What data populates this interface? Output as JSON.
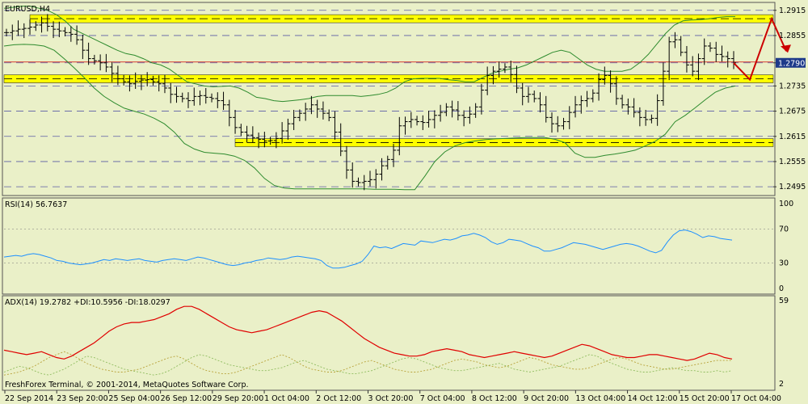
{
  "colors": {
    "background": "#eaf0c8",
    "candle": "#000000",
    "bollinger": "#2e8b2e",
    "rsi_line": "#1e90ff",
    "adx_line": "#e00000",
    "di_plus": "#8fbc5f",
    "di_minus": "#b8a23a",
    "support_band": "#ffff00",
    "projection": "#cc0000",
    "price_marker_bg": "#1e3a8a"
  },
  "chart_data": [
    {
      "type": "candlestick",
      "title": "EURUSD,H4",
      "price_axis": [
        "1.2915",
        "1.2855",
        "1.2790",
        "1.2735",
        "1.2675",
        "1.2615",
        "1.2555",
        "1.2495"
      ],
      "ylim": [
        1.2478,
        1.2928
      ],
      "current_price": "1.2790",
      "x_ticks": [
        "22 Sep 2014",
        "23 Sep 20:00",
        "25 Sep 04:00",
        "26 Sep 12:00",
        "29 Sep 20:00",
        "1 Oct 04:00",
        "2 Oct 12:00",
        "3 Oct 20:00",
        "7 Oct 04:00",
        "8 Oct 12:00",
        "9 Oct 20:00",
        "13 Oct 04:00",
        "14 Oct 12:00",
        "15 Oct 20:00",
        "17 Oct 04:00"
      ],
      "close_series": [
        1.2862,
        1.2866,
        1.287,
        1.2872,
        1.2875,
        1.288,
        1.2885,
        1.2877,
        1.287,
        1.2866,
        1.2862,
        1.2858,
        1.2845,
        1.282,
        1.28,
        1.2795,
        1.279,
        1.278,
        1.2765,
        1.2752,
        1.2745,
        1.274,
        1.2746,
        1.2749,
        1.275,
        1.2745,
        1.274,
        1.273,
        1.2715,
        1.271,
        1.2705,
        1.27,
        1.271,
        1.2712,
        1.2708,
        1.2705,
        1.27,
        1.269,
        1.266,
        1.2636,
        1.2625,
        1.2618,
        1.2612,
        1.2608,
        1.2604,
        1.2605,
        1.261,
        1.2628,
        1.2645,
        1.266,
        1.267,
        1.268,
        1.269,
        1.268,
        1.267,
        1.266,
        1.2625,
        1.258,
        1.2535,
        1.2508,
        1.2505,
        1.2508,
        1.2512,
        1.2525,
        1.2545,
        1.256,
        1.2582,
        1.264,
        1.265,
        1.2655,
        1.265,
        1.2648,
        1.2655,
        1.2665,
        1.2672,
        1.2685,
        1.2678,
        1.2665,
        1.266,
        1.2668,
        1.2685,
        1.2725,
        1.276,
        1.277,
        1.2775,
        1.278,
        1.2762,
        1.273,
        1.271,
        1.2715,
        1.2705,
        1.269,
        1.266,
        1.2645,
        1.264,
        1.265,
        1.2672,
        1.269,
        1.27,
        1.2705,
        1.2718,
        1.275,
        1.276,
        1.274,
        1.2705,
        1.269,
        1.2685,
        1.2672,
        1.266,
        1.2655,
        1.2658,
        1.27,
        1.277,
        1.284,
        1.2845,
        1.2815,
        1.2785,
        1.277,
        1.28,
        1.283,
        1.2825,
        1.281,
        1.2805,
        1.28,
        1.279
      ],
      "upper_bollinger": [
        1.292,
        1.2922,
        1.2925,
        1.2925,
        1.292,
        1.2915,
        1.2905,
        1.289,
        1.287,
        1.286,
        1.285,
        1.284,
        1.283,
        1.282,
        1.2812,
        1.2808,
        1.28,
        1.279,
        1.2785,
        1.2775,
        1.276,
        1.2745,
        1.274,
        1.2735,
        1.2733,
        1.2734,
        1.2735,
        1.273,
        1.272,
        1.2708,
        1.2705,
        1.27,
        1.2698,
        1.27,
        1.2702,
        1.2705,
        1.271,
        1.2712,
        1.2712,
        1.2712,
        1.2712,
        1.271,
        1.2712,
        1.2715,
        1.272,
        1.273,
        1.2745,
        1.2752,
        1.2753,
        1.2753,
        1.2753,
        1.275,
        1.2748,
        1.2745,
        1.2745,
        1.2755,
        1.2765,
        1.277,
        1.2775,
        1.2778,
        1.2785,
        1.2795,
        1.2805,
        1.2815,
        1.282,
        1.2815,
        1.28,
        1.2785,
        1.2775,
        1.277,
        1.277,
        1.277,
        1.2775,
        1.279,
        1.281,
        1.2835,
        1.286,
        1.288,
        1.289,
        1.2892,
        1.2893,
        1.2895,
        1.2898,
        1.29,
        1.29
      ],
      "lower_bollinger": [
        1.283,
        1.2833,
        1.2834,
        1.2833,
        1.283,
        1.282,
        1.28,
        1.2778,
        1.2755,
        1.273,
        1.271,
        1.2695,
        1.2682,
        1.2675,
        1.2668,
        1.2658,
        1.2645,
        1.2625,
        1.2598,
        1.2585,
        1.2577,
        1.2575,
        1.2573,
        1.2568,
        1.2558,
        1.254,
        1.2515,
        1.2498,
        1.2492,
        1.249,
        1.249,
        1.249,
        1.249,
        1.249,
        1.249,
        1.249,
        1.249,
        1.2489,
        1.2489,
        1.2489,
        1.2488,
        1.2488,
        1.252,
        1.2555,
        1.2578,
        1.2592,
        1.26,
        1.2604,
        1.2607,
        1.2609,
        1.261,
        1.2611,
        1.2612,
        1.2612,
        1.2612,
        1.2608,
        1.26,
        1.2575,
        1.2565,
        1.2565,
        1.257,
        1.2573,
        1.2577,
        1.2582,
        1.2592,
        1.2603,
        1.262,
        1.265,
        1.2665,
        1.2683,
        1.2702,
        1.272,
        1.273,
        1.2735
      ],
      "key_levels": [
        1.2895,
        1.2752,
        1.26
      ],
      "band_labels": [
        "1.2915",
        "1.2735",
        "1.2615"
      ]
    },
    {
      "type": "line",
      "title": "RSI(14) 56.7637",
      "y_ticks": [
        "100",
        "70",
        "30",
        "0"
      ],
      "ylim": [
        0,
        100
      ],
      "levels": [
        70,
        30
      ],
      "values": [
        37,
        38,
        39,
        38,
        40,
        41,
        40,
        38,
        36,
        33,
        32,
        30,
        29,
        28,
        29,
        30,
        32,
        34,
        33,
        35,
        34,
        33,
        34,
        35,
        33,
        32,
        31,
        33,
        34,
        35,
        34,
        33,
        35,
        37,
        36,
        34,
        32,
        30,
        28,
        27,
        28,
        30,
        31,
        33,
        34,
        36,
        35,
        34,
        35,
        37,
        38,
        37,
        36,
        35,
        33,
        27,
        24,
        24,
        25,
        27,
        29,
        32,
        40,
        50,
        48,
        49,
        47,
        50,
        53,
        52,
        51,
        56,
        55,
        54,
        56,
        58,
        57,
        59,
        62,
        63,
        65,
        63,
        60,
        55,
        52,
        54,
        58,
        57,
        56,
        53,
        50,
        48,
        44,
        44,
        46,
        48,
        51,
        54,
        53,
        52,
        50,
        48,
        46,
        48,
        50,
        52,
        53,
        52,
        50,
        47,
        44,
        42,
        45,
        55,
        63,
        68,
        69,
        67,
        64,
        60,
        62,
        61,
        59,
        58,
        57
      ]
    },
    {
      "type": "line",
      "title": "ADX(14) 19.2782 +DI:10.5956 -DI:18.0297",
      "y_ticks": [
        "59",
        "2"
      ],
      "ylim": [
        2,
        59
      ],
      "series": [
        {
          "values": [
            25,
            24,
            23,
            22,
            23,
            24,
            22,
            20,
            19,
            21,
            24,
            27,
            30,
            34,
            38,
            41,
            43,
            44,
            44,
            45,
            46,
            48,
            50,
            53,
            55,
            55,
            53,
            50,
            47,
            44,
            41,
            39,
            38,
            37,
            38,
            39,
            41,
            43,
            45,
            47,
            49,
            51,
            52,
            51,
            48,
            45,
            41,
            37,
            33,
            30,
            27,
            25,
            23,
            22,
            21,
            21,
            22,
            24,
            25,
            26,
            25,
            24,
            22,
            21,
            20,
            21,
            22,
            23,
            24,
            23,
            22,
            21,
            20,
            21,
            23,
            25,
            27,
            29,
            28,
            26,
            24,
            22,
            21,
            20,
            20,
            21,
            22,
            22,
            21,
            20,
            19,
            18,
            19,
            21,
            23,
            22,
            20,
            19
          ]
        },
        {
          "values": [
            10,
            12,
            14,
            13,
            11,
            9,
            8,
            10,
            12,
            15,
            18,
            21,
            20,
            18,
            16,
            14,
            12,
            11,
            10,
            9,
            8,
            9,
            11,
            14,
            17,
            20,
            22,
            21,
            19,
            17,
            15,
            14,
            13,
            12,
            11,
            11,
            12,
            13,
            15,
            17,
            18,
            16,
            14,
            12,
            11,
            10,
            9,
            9,
            10,
            11,
            13,
            15,
            17,
            19,
            20,
            19,
            17,
            15,
            13,
            12,
            11,
            11,
            12,
            13,
            14,
            15,
            16,
            14,
            12,
            11,
            10,
            11,
            12,
            13,
            14,
            16,
            18,
            20,
            22,
            21,
            18,
            16,
            14,
            12,
            11,
            10,
            10,
            11,
            12,
            13,
            12,
            11,
            11,
            10,
            10,
            11,
            10,
            11
          ]
        },
        {
          "values": [
            8,
            9,
            10,
            12,
            14,
            17,
            20,
            22,
            24,
            22,
            19,
            16,
            14,
            12,
            11,
            10,
            10,
            11,
            12,
            14,
            16,
            18,
            20,
            21,
            19,
            16,
            13,
            11,
            10,
            9,
            9,
            10,
            12,
            14,
            16,
            18,
            20,
            22,
            20,
            17,
            14,
            12,
            11,
            10,
            10,
            11,
            13,
            15,
            17,
            18,
            16,
            14,
            12,
            11,
            10,
            10,
            11,
            12,
            14,
            16,
            18,
            19,
            18,
            17,
            15,
            14,
            13,
            14,
            16,
            18,
            20,
            19,
            17,
            15,
            14,
            13,
            12,
            12,
            13,
            15,
            17,
            19,
            20,
            19,
            17,
            15,
            14,
            13,
            12,
            12,
            13,
            14,
            15,
            16,
            17,
            18,
            18,
            18
          ]
        }
      ]
    }
  ],
  "footer": {
    "copyright": "FreshForex Terminal, © 2001-2014, MetaQuotes Software Corp."
  }
}
